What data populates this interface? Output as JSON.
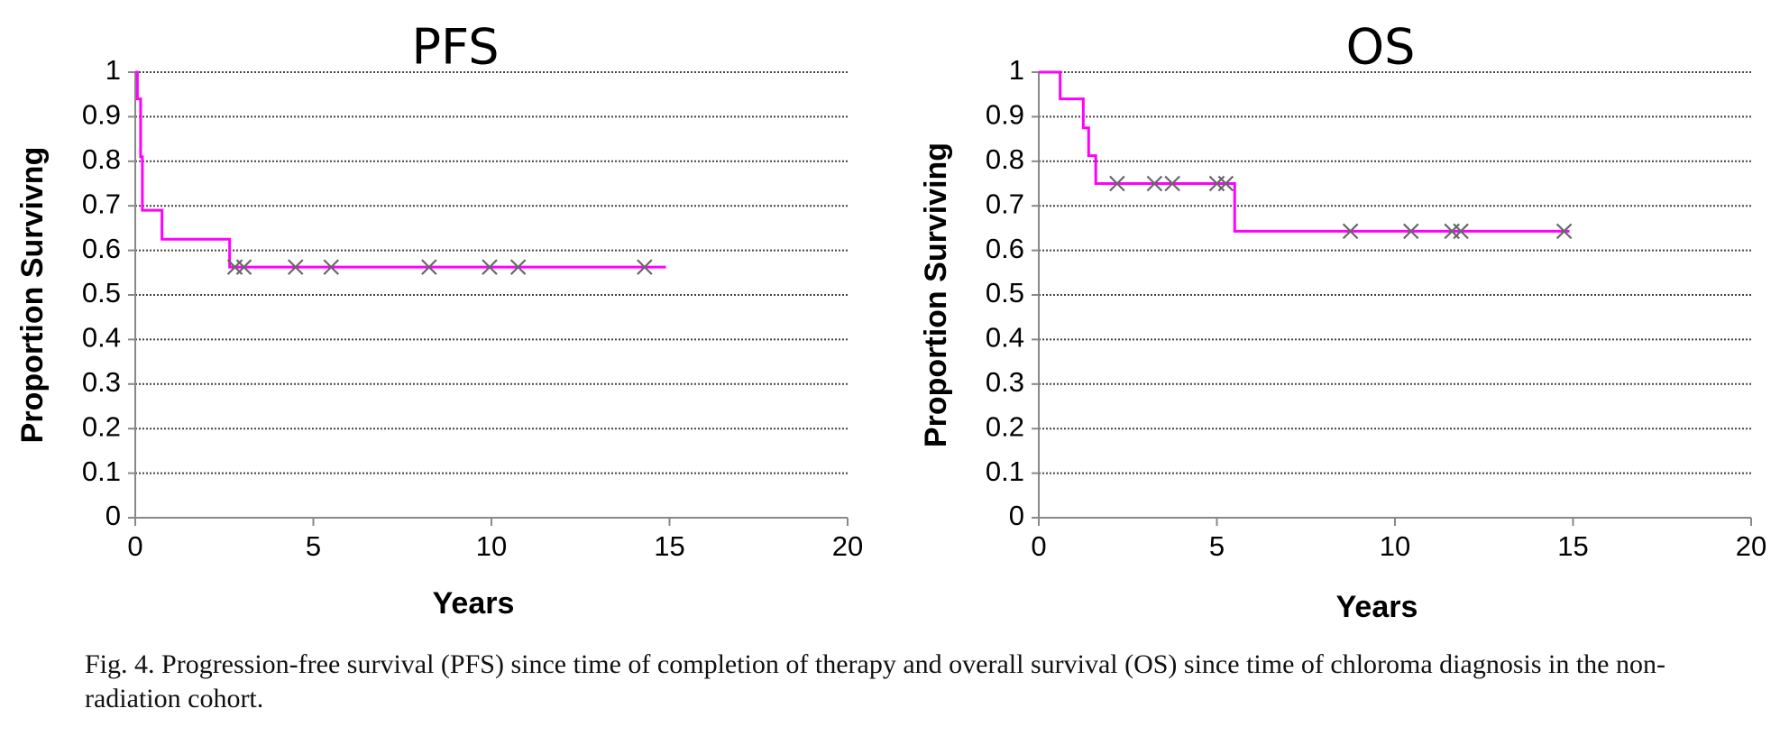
{
  "chart_data": [
    {
      "type": "line",
      "title": "PFS",
      "xlabel": "Years",
      "ylabel": "Proportion Survivng",
      "xlim": [
        0,
        20
      ],
      "ylim": [
        0,
        1
      ],
      "x_ticks": [
        0,
        5,
        10,
        15,
        20
      ],
      "y_ticks": [
        0,
        0.1,
        0.2,
        0.3,
        0.4,
        0.5,
        0.6,
        0.7,
        0.8,
        0.9,
        1
      ],
      "grid": "horizontal dotted",
      "series": [
        {
          "x": [
            0,
            0.06,
            0.06,
            0.15,
            0.15,
            0.2,
            0.2,
            0.75,
            0.75,
            2.65,
            2.65,
            14.9
          ],
          "y": [
            1,
            1,
            0.94,
            0.94,
            0.81,
            0.81,
            0.69,
            0.69,
            0.625,
            0.625,
            0.5625,
            0.5625
          ],
          "color": "#ff00ff",
          "censored_x": [
            2.8,
            3.05,
            4.5,
            5.5,
            8.25,
            9.95,
            10.75,
            14.3
          ]
        }
      ]
    },
    {
      "type": "line",
      "title": "OS",
      "xlabel": "Years",
      "ylabel": "Proportion Surviving",
      "xlim": [
        0,
        20
      ],
      "ylim": [
        0,
        1
      ],
      "x_ticks": [
        0,
        5,
        10,
        15,
        20
      ],
      "y_ticks": [
        0,
        0.1,
        0.2,
        0.3,
        0.4,
        0.5,
        0.6,
        0.7,
        0.8,
        0.9,
        1
      ],
      "grid": "horizontal dotted",
      "series": [
        {
          "x": [
            0,
            0.6,
            0.6,
            1.25,
            1.25,
            1.4,
            1.4,
            1.6,
            1.6,
            5.5,
            5.5,
            14.9
          ],
          "y": [
            1,
            1,
            0.94,
            0.94,
            0.875,
            0.875,
            0.8125,
            0.8125,
            0.75,
            0.75,
            0.643,
            0.643
          ],
          "color": "#ff00ff",
          "censored_x": [
            2.2,
            3.25,
            3.75,
            5.0,
            5.25,
            8.75,
            10.45,
            11.6,
            11.85,
            14.75
          ]
        }
      ]
    }
  ],
  "caption": "Fig. 4.  Progression-free survival (PFS) since time of completion of therapy and overall survival (OS) since time of chloroma diagnosis in the non-radiation cohort."
}
